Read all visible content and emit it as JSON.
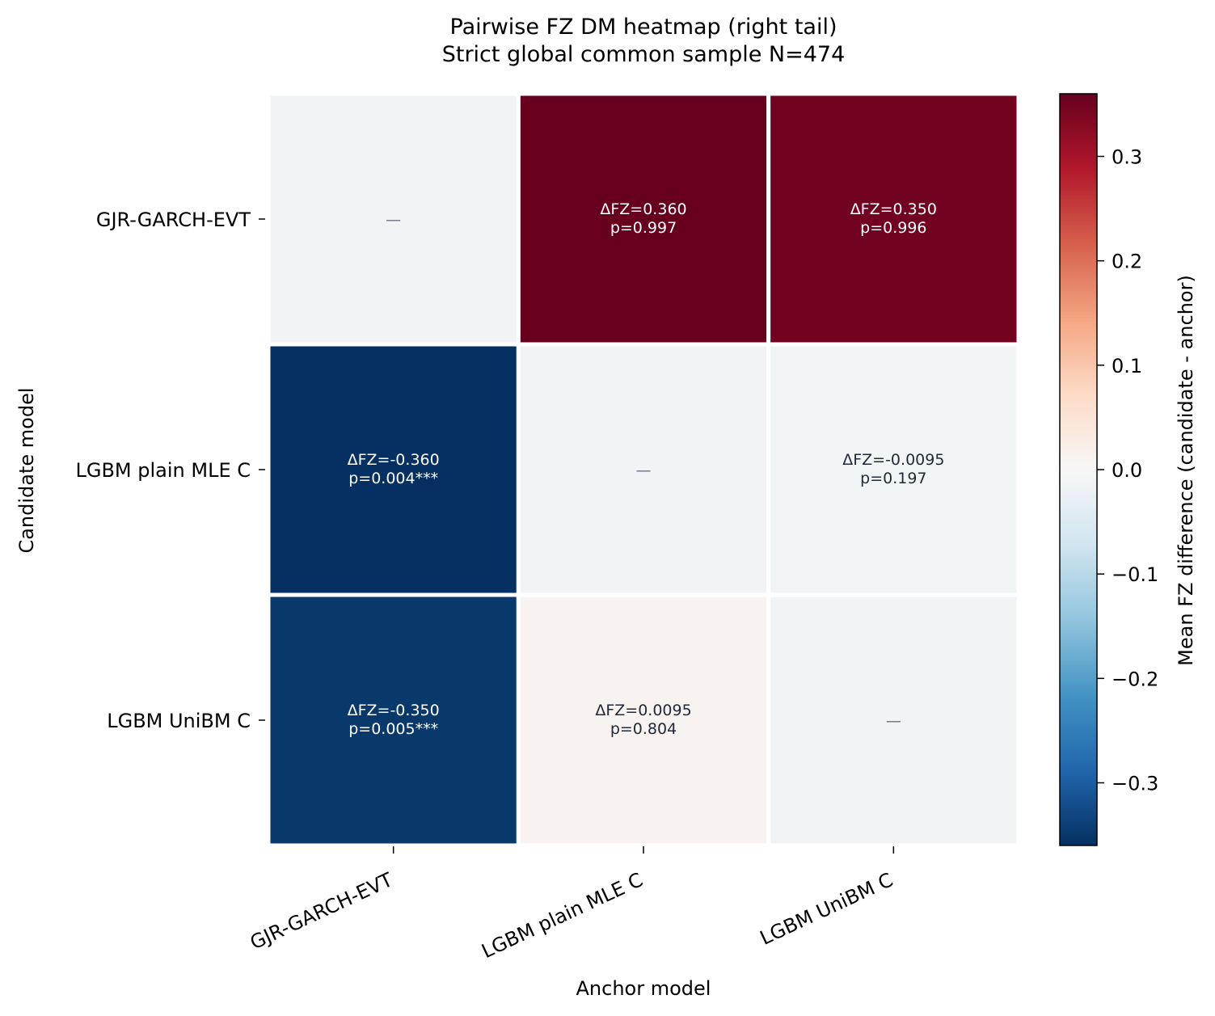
{
  "chart_data": {
    "type": "heatmap",
    "title": "Pairwise FZ DM heatmap (right tail)",
    "subtitle": "Strict global common sample N=474",
    "xlabel": "Anchor model",
    "ylabel": "Candidate model",
    "x_categories": [
      "GJR-GARCH-EVT",
      "LGBM plain MLE C",
      "LGBM UniBM C"
    ],
    "y_categories": [
      "GJR-GARCH-EVT",
      "LGBM plain MLE C",
      "LGBM UniBM C"
    ],
    "values": [
      [
        null,
        0.36,
        0.35
      ],
      [
        -0.36,
        null,
        -0.0095
      ],
      [
        -0.35,
        0.0095,
        null
      ]
    ],
    "cell_labels": [
      [
        {
          "line1": "—",
          "line2": ""
        },
        {
          "line1": "ΔFZ=0.360",
          "line2": "p=0.997"
        },
        {
          "line1": "ΔFZ=0.350",
          "line2": "p=0.996"
        }
      ],
      [
        {
          "line1": "ΔFZ=-0.360",
          "line2": "p=0.004***"
        },
        {
          "line1": "—",
          "line2": ""
        },
        {
          "line1": "ΔFZ=-0.0095",
          "line2": "p=0.197"
        }
      ],
      [
        {
          "line1": "ΔFZ=-0.350",
          "line2": "p=0.005***"
        },
        {
          "line1": "ΔFZ=0.0095",
          "line2": "p=0.804"
        },
        {
          "line1": "—",
          "line2": ""
        }
      ]
    ],
    "colorbar": {
      "label": "Mean FZ difference (candidate - anchor)",
      "range": [
        -0.36,
        0.36
      ],
      "ticks": [
        0.3,
        0.2,
        0.1,
        0.0,
        -0.1,
        -0.2,
        -0.3
      ],
      "tick_labels": [
        "0.3",
        "0.2",
        "0.1",
        "0.0",
        "−0.1",
        "−0.2",
        "−0.3"
      ],
      "colormap": "RdBu_r"
    },
    "diagonal_color": "#f2f3f5",
    "diagonal_mark_color": "#6b7280",
    "grid": false
  }
}
